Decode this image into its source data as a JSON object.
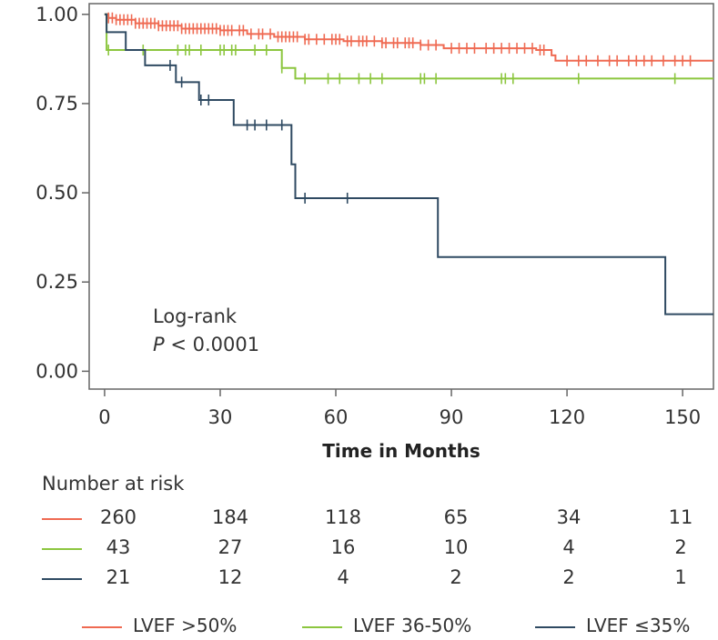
{
  "chart_data": {
    "type": "line",
    "title": "",
    "xlabel": "Time in Months",
    "ylabel": "",
    "xlim": [
      -4,
      158
    ],
    "ylim": [
      -0.05,
      1.03
    ],
    "x_ticks": [
      0,
      30,
      60,
      90,
      120,
      150
    ],
    "x_tick_labels": [
      "0",
      "30",
      "60",
      "90",
      "120",
      "150"
    ],
    "y_ticks": [
      0,
      0.25,
      0.5,
      0.75,
      1.0
    ],
    "y_tick_labels": [
      "0.00",
      "0.25",
      "0.50",
      "0.75",
      "1.00"
    ],
    "annotation": {
      "line1": "Log-rank",
      "line2_italic": "P",
      "line2_rest": " < 0.0001"
    },
    "series": [
      {
        "name": "LVEF >50%",
        "color": "#ef6a52",
        "steps": [
          [
            0,
            1.0
          ],
          [
            1,
            0.99
          ],
          [
            3,
            0.985
          ],
          [
            8,
            0.975
          ],
          [
            14,
            0.968
          ],
          [
            20,
            0.96
          ],
          [
            30,
            0.955
          ],
          [
            37,
            0.945
          ],
          [
            44,
            0.937
          ],
          [
            52,
            0.93
          ],
          [
            62,
            0.925
          ],
          [
            72,
            0.92
          ],
          [
            82,
            0.914
          ],
          [
            88,
            0.905
          ],
          [
            102,
            0.905
          ],
          [
            112,
            0.9
          ],
          [
            116,
            0.885
          ],
          [
            117,
            0.87
          ],
          [
            158,
            0.87
          ]
        ],
        "censors": [
          1,
          2,
          3,
          4,
          5,
          6,
          7,
          8,
          9,
          10,
          11,
          12,
          13,
          14,
          15,
          16,
          17,
          18,
          19,
          20,
          21,
          22,
          23,
          24,
          25,
          26,
          27,
          28,
          29,
          30,
          31,
          32,
          33,
          35,
          36,
          38,
          40,
          41,
          43,
          45,
          46,
          47,
          48,
          49,
          50,
          52,
          53,
          55,
          57,
          59,
          60,
          61,
          63,
          64,
          66,
          67,
          68,
          70,
          72,
          73,
          75,
          76,
          78,
          79,
          80,
          82,
          84,
          86,
          90,
          92,
          94,
          96,
          99,
          101,
          103,
          105,
          107,
          109,
          111,
          113,
          114,
          120,
          123,
          125,
          128,
          131,
          133,
          136,
          138,
          140,
          142,
          145,
          148,
          150,
          152
        ]
      },
      {
        "name": "LVEF 36-50%",
        "color": "#8cc63f",
        "steps": [
          [
            0,
            1.0
          ],
          [
            0.5,
            0.9
          ],
          [
            45,
            0.9
          ],
          [
            46,
            0.85
          ],
          [
            49,
            0.85
          ],
          [
            49.5,
            0.82
          ],
          [
            158,
            0.82
          ]
        ],
        "censors": [
          1,
          10,
          19,
          21,
          22,
          25,
          30,
          31,
          33,
          34,
          39,
          42,
          46,
          52,
          58,
          61,
          66,
          69,
          72,
          82,
          83,
          86,
          103,
          104,
          106,
          123,
          148
        ]
      },
      {
        "name": "LVEF ≤35%",
        "color": "#2f4a62",
        "steps": [
          [
            0,
            1.0
          ],
          [
            0.5,
            0.95
          ],
          [
            5,
            0.95
          ],
          [
            5.5,
            0.9
          ],
          [
            10,
            0.9
          ],
          [
            10.5,
            0.857
          ],
          [
            18,
            0.857
          ],
          [
            18.5,
            0.81
          ],
          [
            24,
            0.81
          ],
          [
            24.5,
            0.76
          ],
          [
            33,
            0.76
          ],
          [
            33.5,
            0.69
          ],
          [
            48,
            0.69
          ],
          [
            48.5,
            0.58
          ],
          [
            49,
            0.58
          ],
          [
            49.5,
            0.485
          ],
          [
            86,
            0.485
          ],
          [
            86.5,
            0.32
          ],
          [
            145,
            0.32
          ],
          [
            145.5,
            0.16
          ],
          [
            158,
            0.16
          ]
        ],
        "censors": [
          17,
          20,
          25,
          27,
          37,
          39,
          42,
          46,
          52,
          63
        ]
      }
    ]
  },
  "risk_table": {
    "title": "Number at risk",
    "times": [
      0,
      30,
      60,
      90,
      120,
      150
    ],
    "rows": [
      {
        "color": "#ef6a52",
        "values": [
          "260",
          "184",
          "118",
          "65",
          "34",
          "11"
        ]
      },
      {
        "color": "#8cc63f",
        "values": [
          "43",
          "27",
          "16",
          "10",
          "4",
          "2"
        ]
      },
      {
        "color": "#2f4a62",
        "values": [
          "21",
          "12",
          "4",
          "2",
          "2",
          "1"
        ]
      }
    ]
  },
  "legend": [
    {
      "label": "LVEF >50%",
      "color": "#ef6a52"
    },
    {
      "label": "LVEF 36-50%",
      "color": "#8cc63f"
    },
    {
      "label": "LVEF ≤35%",
      "color": "#2f4a62"
    }
  ]
}
